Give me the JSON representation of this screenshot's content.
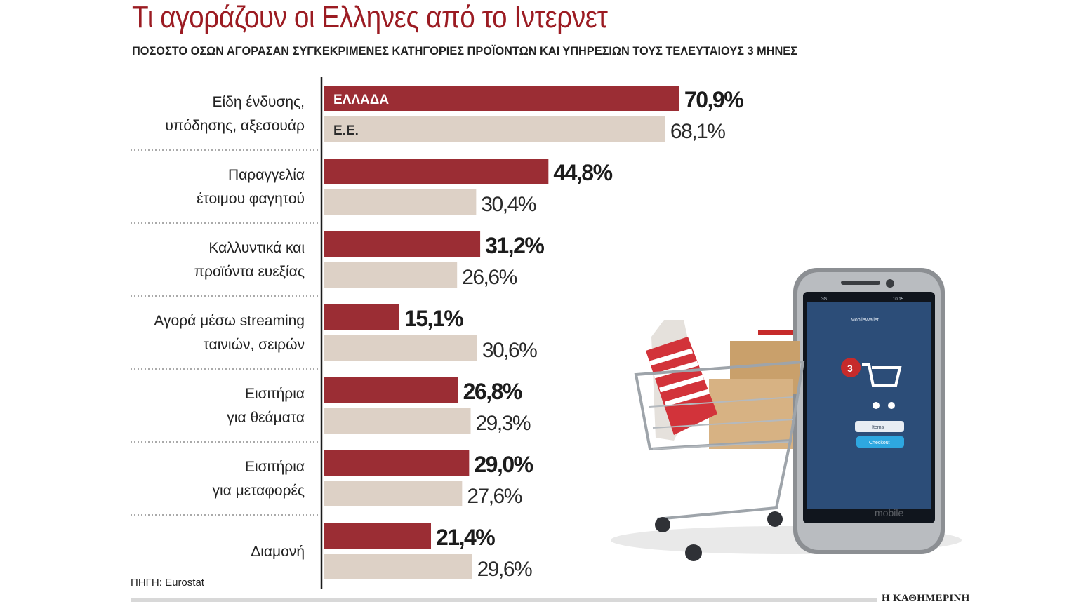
{
  "title": "Τι αγοράζουν οι Ελληνες από το Ιντερνετ",
  "subtitle": "ΠΟΣΟΣΤΟ ΟΣΩΝ ΑΓΟΡΑΣΑΝ ΣΥΓΚΕΚΡΙΜΕΝΕΣ ΚΑΤΗΓΟΡΙΕΣ ΠΡΟΪΟΝΤΩΝ ΚΑΙ ΥΠΗΡΕΣΙΩΝ ΤΟΥΣ ΤΕΛΕΥΤΑΙΟΥΣ 3 ΜΗΝΕΣ",
  "source": "ΠΗΓΗ: Eurostat",
  "brand": "Η ΚΑΘΗΜΕΡΙΝΗ",
  "illustration": {
    "phone_app_title": "MobileWallet",
    "phone_badge": "3",
    "phone_items_button": "Items",
    "phone_checkout_button": "Checkout",
    "phone_brand": "mobile",
    "phone_status_time": "10:15",
    "phone_status_signal": "3G"
  },
  "colors": {
    "greece": "#9b2d34",
    "eu": "#ddd1c6",
    "title": "#9b1b22"
  },
  "chart_data": {
    "type": "bar",
    "orientation": "horizontal",
    "categories": [
      [
        "Είδη ένδυσης,",
        "υπόδησης, αξεσουάρ"
      ],
      [
        "Παραγγελία",
        "έτοιμου φαγητού"
      ],
      [
        "Καλλυντικά και",
        "προϊόντα ευεξίας"
      ],
      [
        "Αγορά μέσω streaming",
        "ταινιών, σειρών"
      ],
      [
        "Εισιτήρια",
        "για θεάματα"
      ],
      [
        "Εισιτήρια",
        "για μεταφορές"
      ],
      [
        "Διαμονή"
      ]
    ],
    "series": [
      {
        "name": "ΕΛΛΑΔΑ",
        "values": [
          70.9,
          44.8,
          31.2,
          15.1,
          26.8,
          29.0,
          21.4
        ],
        "labels": [
          "70,9%",
          "44,8%",
          "31,2%",
          "15,1%",
          "26,8%",
          "29,0%",
          "21,4%"
        ]
      },
      {
        "name": "Ε.Ε.",
        "values": [
          68.1,
          30.4,
          26.6,
          30.6,
          29.3,
          27.6,
          29.6
        ],
        "labels": [
          "68,1%",
          "30,4%",
          "26,6%",
          "30,6%",
          "29,3%",
          "27,6%",
          "29,6%"
        ]
      }
    ],
    "legend": "inside-first-bars",
    "unit": "%"
  }
}
